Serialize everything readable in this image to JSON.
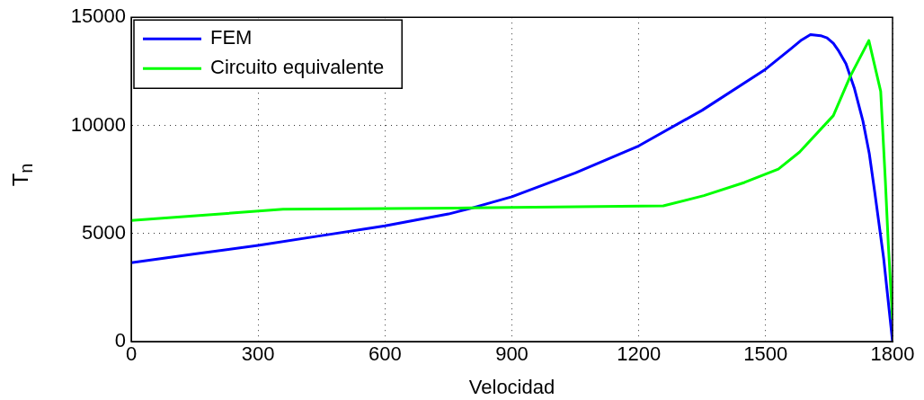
{
  "chart_data": {
    "type": "line",
    "xlabel": "Velocidad",
    "ylabel": "T$_{n}$",
    "xlim": [
      0,
      1800
    ],
    "xticks": [
      0,
      300,
      600,
      900,
      1200,
      1500,
      1800
    ],
    "ylim": [
      0,
      15000
    ],
    "yticks": [
      0,
      5000,
      10000,
      15000
    ],
    "grid": true,
    "legend": "top left",
    "marker": "none",
    "line_style": "solid",
    "series": [
      {
        "name": "FEM",
        "color": "#0000ff",
        "x": [
          0,
          150,
          300,
          450,
          600,
          750,
          800,
          900,
          1050,
          1200,
          1350,
          1500,
          1560,
          1585,
          1606,
          1630,
          1645,
          1660,
          1673,
          1690,
          1710,
          1730,
          1745,
          1758,
          1779,
          1800
        ],
        "values": [
          3650,
          4050,
          4450,
          4900,
          5350,
          5900,
          6150,
          6700,
          7800,
          9050,
          10700,
          12600,
          13550,
          13950,
          14200,
          14150,
          14050,
          13800,
          13430,
          12850,
          11700,
          10200,
          8700,
          6900,
          3850,
          0
        ]
      },
      {
        "name": "Circuito equivalente",
        "color": "#00ff00",
        "x": [
          0,
          359,
          800,
          1258,
          1354,
          1450,
          1530,
          1580,
          1660,
          1700,
          1744,
          1772,
          1783,
          1790,
          1800
        ],
        "values": [
          5600,
          6120,
          6180,
          6280,
          6750,
          7360,
          7980,
          8760,
          10450,
          12270,
          13920,
          11570,
          7440,
          4500,
          1030
        ]
      }
    ]
  }
}
